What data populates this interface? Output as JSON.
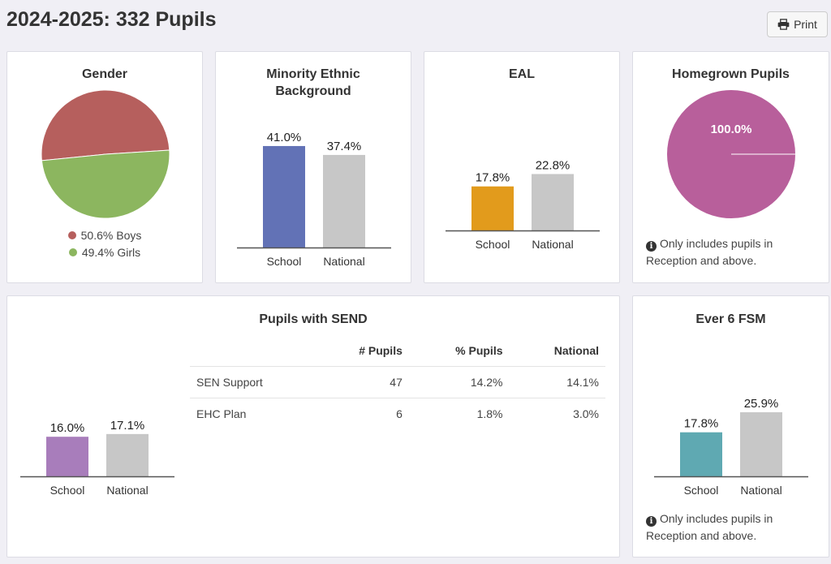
{
  "page": {
    "title": "2024-2025: 332 Pupils"
  },
  "toolbar": {
    "print_label": "Print",
    "print_icon": "printer-icon"
  },
  "colors": {
    "boys": "#b65f5d",
    "girls": "#8cb65f",
    "minority": "#6272b6",
    "eal": "#e29b1c",
    "homegrown": "#b85f9b",
    "send": "#a87dbb",
    "fsm": "#5fa9b2",
    "national": "#c7c7c7"
  },
  "gender": {
    "title": "Gender",
    "legend": [
      "50.6% Boys",
      "49.4% Girls"
    ]
  },
  "minority": {
    "title_line1": "Minority Ethnic",
    "title_line2": "Background"
  },
  "eal": {
    "title": "EAL"
  },
  "homegrown": {
    "title": "Homegrown Pupils",
    "note": "Only includes pupils in Reception and above."
  },
  "send": {
    "title": "Pupils with SEND",
    "table": {
      "headers": [
        "",
        "# Pupils",
        "% Pupils",
        "National"
      ],
      "rows": [
        [
          "SEN Support",
          "47",
          "14.2%",
          "14.1%"
        ],
        [
          "EHC Plan",
          "6",
          "1.8%",
          "3.0%"
        ]
      ]
    }
  },
  "fsm": {
    "title": "Ever 6 FSM",
    "note": "Only includes pupils in Reception and above."
  },
  "chart_data": [
    {
      "id": "gender",
      "type": "pie",
      "title": "Gender",
      "slices": [
        {
          "label": "Boys",
          "value": 50.6,
          "color": "#b65f5d"
        },
        {
          "label": "Girls",
          "value": 49.4,
          "color": "#8cb65f"
        }
      ]
    },
    {
      "id": "minority",
      "type": "bar",
      "title": "Minority Ethnic Background",
      "categories": [
        "School",
        "National"
      ],
      "values": [
        41.0,
        37.4
      ],
      "labels": [
        "41.0%",
        "37.4%"
      ],
      "colors": [
        "#6272b6",
        "#c7c7c7"
      ]
    },
    {
      "id": "eal",
      "type": "bar",
      "title": "EAL",
      "categories": [
        "School",
        "National"
      ],
      "values": [
        17.8,
        22.8
      ],
      "labels": [
        "17.8%",
        "22.8%"
      ],
      "colors": [
        "#e29b1c",
        "#c7c7c7"
      ]
    },
    {
      "id": "homegrown",
      "type": "pie",
      "title": "Homegrown Pupils",
      "slices": [
        {
          "label": "100.0%",
          "value": 100.0,
          "color": "#b85f9b"
        }
      ]
    },
    {
      "id": "send",
      "type": "bar",
      "title": "Pupils with SEND",
      "categories": [
        "School",
        "National"
      ],
      "values": [
        16.0,
        17.1
      ],
      "labels": [
        "16.0%",
        "17.1%"
      ],
      "colors": [
        "#a87dbb",
        "#c7c7c7"
      ]
    },
    {
      "id": "fsm",
      "type": "bar",
      "title": "Ever 6 FSM",
      "categories": [
        "School",
        "National"
      ],
      "values": [
        17.8,
        25.9
      ],
      "labels": [
        "17.8%",
        "25.9%"
      ],
      "colors": [
        "#5fa9b2",
        "#c7c7c7"
      ]
    }
  ]
}
